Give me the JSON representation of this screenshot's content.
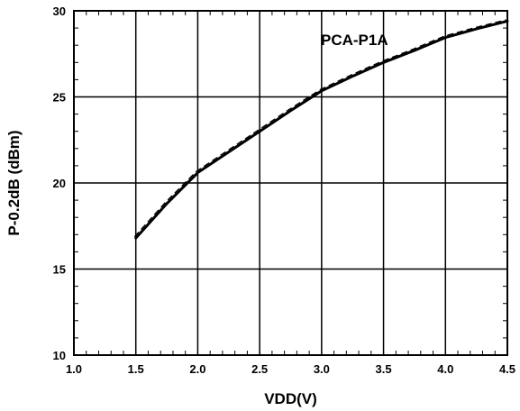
{
  "chart_data": {
    "type": "line",
    "xlabel": "VDD(V)",
    "ylabel": "P-0.2dB (dBm)",
    "xlim": [
      1.0,
      4.5
    ],
    "ylim": [
      10,
      30
    ],
    "x_ticks": [
      1.0,
      1.5,
      2.0,
      2.5,
      3.0,
      3.5,
      4.0,
      4.5
    ],
    "x_tick_labels": [
      "1.0",
      "1.5",
      "2.0",
      "2.5",
      "3.0",
      "3.5",
      "4.0",
      "4.5"
    ],
    "y_ticks": [
      10,
      15,
      20,
      25,
      30
    ],
    "y_tick_labels": [
      "10",
      "15",
      "20",
      "25",
      "30"
    ],
    "grid": true,
    "annotation": "PCA-P1A",
    "series": [
      {
        "x": [
          1.5,
          1.75,
          2.0,
          2.25,
          2.5,
          2.75,
          3.0,
          3.25,
          3.5,
          3.75,
          4.0,
          4.25,
          4.5
        ],
        "y": [
          16.8,
          18.8,
          20.6,
          21.8,
          23.0,
          24.2,
          25.35,
          26.2,
          27.0,
          27.7,
          28.45,
          28.95,
          29.4
        ]
      }
    ]
  }
}
